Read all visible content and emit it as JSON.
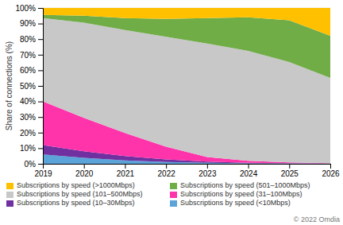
{
  "chart_data": {
    "type": "area",
    "stacked": true,
    "y_label": "Share of connections (%)",
    "x": [
      2019,
      2020,
      2021,
      2022,
      2023,
      2024,
      2025,
      2026
    ],
    "series": [
      {
        "name": "Subscriptions by speed (<10Mbps)",
        "color": "#5ba3d9",
        "values": [
          0.06,
          0.038,
          0.022,
          0.012,
          0.006,
          0.003,
          0.002,
          0.001
        ]
      },
      {
        "name": "Subscriptions by speed (10–30Mbps)",
        "color": "#7030a0",
        "values": [
          0.06,
          0.042,
          0.028,
          0.016,
          0.008,
          0.004,
          0.002,
          0.001
        ]
      },
      {
        "name": "Subscriptions by speed (31–100Mbps)",
        "color": "#ff33aa",
        "values": [
          0.28,
          0.215,
          0.148,
          0.082,
          0.03,
          0.012,
          0.005,
          0.002
        ]
      },
      {
        "name": "Subscriptions by speed (101–500Mbps)",
        "color": "#c8c8c8",
        "values": [
          0.535,
          0.61,
          0.66,
          0.705,
          0.728,
          0.706,
          0.644,
          0.547
        ]
      },
      {
        "name": "Subscriptions by speed (501–1000Mbps)",
        "color": "#70ad47",
        "values": [
          0.02,
          0.045,
          0.077,
          0.115,
          0.163,
          0.215,
          0.268,
          0.27
        ]
      },
      {
        "name": "Subscriptions by speed (>1000Mbps)",
        "color": "#ffc000",
        "values": [
          0.045,
          0.05,
          0.065,
          0.07,
          0.065,
          0.06,
          0.079,
          0.179
        ]
      }
    ],
    "xlim": [
      2019,
      2026
    ],
    "xticks": [
      2019,
      2020,
      2021,
      2022,
      2023,
      2024,
      2025,
      2026
    ],
    "ylim": [
      0,
      1
    ],
    "yticks": [
      {
        "value": 0.0,
        "label": "0%"
      },
      {
        "value": 0.1,
        "label": "10%"
      },
      {
        "value": 0.2,
        "label": "20%"
      },
      {
        "value": 0.3,
        "label": "30%"
      },
      {
        "value": 0.4,
        "label": "40%"
      },
      {
        "value": 0.5,
        "label": "50%"
      },
      {
        "value": 0.6,
        "label": "60%"
      },
      {
        "value": 0.7,
        "label": "70%"
      },
      {
        "value": 0.8,
        "label": "80%"
      },
      {
        "value": 0.9,
        "label": "90%"
      },
      {
        "value": 1.0,
        "label": "100%"
      }
    ],
    "grid": true,
    "legend": "bottom",
    "annotations": [
      "© 2022 Omdia"
    ]
  }
}
